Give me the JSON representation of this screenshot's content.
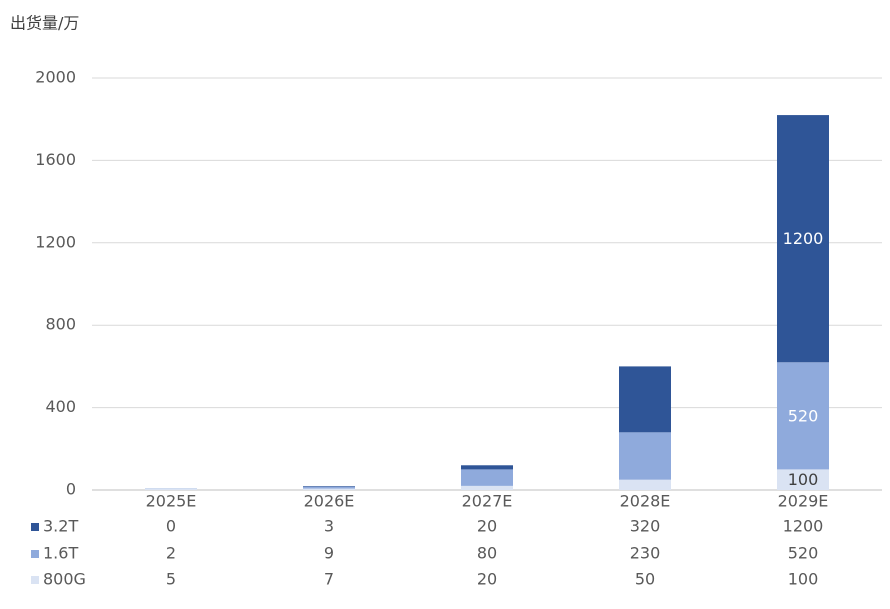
{
  "chart_data": {
    "type": "stacked_bar",
    "y_axis_label": "出货量/万",
    "categories": [
      "2025E",
      "2026E",
      "2027E",
      "2028E",
      "2029E"
    ],
    "series": [
      {
        "name": "3.2T",
        "color": "#2f5597",
        "values": [
          0,
          3,
          20,
          320,
          1200
        ]
      },
      {
        "name": "1.6T",
        "color": "#8faadc",
        "values": [
          2,
          9,
          80,
          230,
          520
        ]
      },
      {
        "name": "800G",
        "color": "#dae3f3",
        "values": [
          5,
          7,
          20,
          50,
          100
        ]
      }
    ],
    "ylim": [
      0,
      2000
    ],
    "yticks": [
      0,
      400,
      800,
      1200,
      1600,
      2000
    ],
    "grid": true
  }
}
